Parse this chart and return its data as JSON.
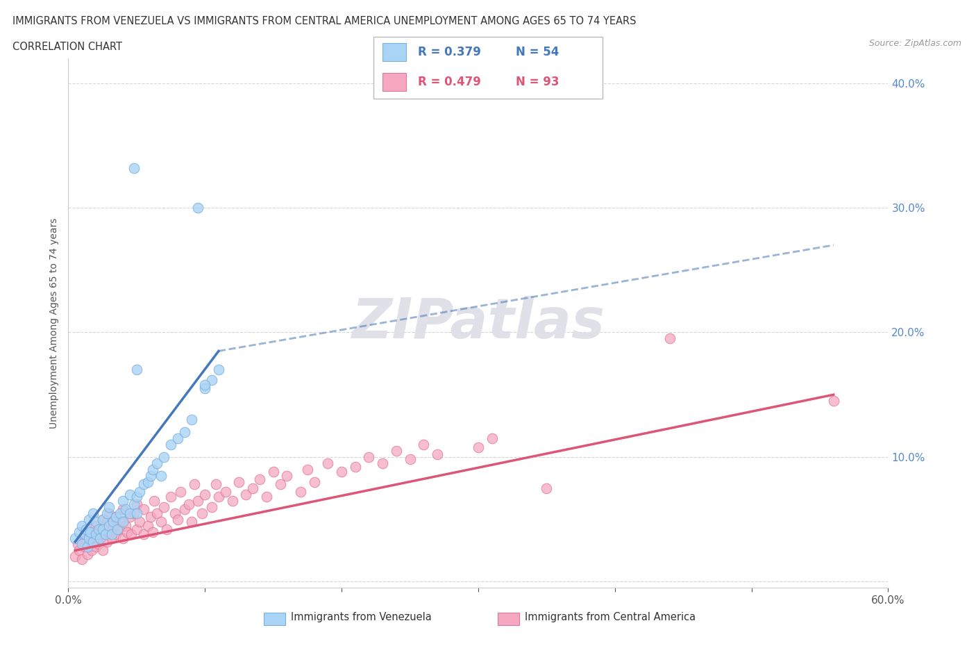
{
  "title_line1": "IMMIGRANTS FROM VENEZUELA VS IMMIGRANTS FROM CENTRAL AMERICA UNEMPLOYMENT AMONG AGES 65 TO 74 YEARS",
  "title_line2": "CORRELATION CHART",
  "source_text": "Source: ZipAtlas.com",
  "ylabel": "Unemployment Among Ages 65 to 74 years",
  "xlim": [
    0.0,
    0.6
  ],
  "ylim": [
    -0.005,
    0.42
  ],
  "xticks": [
    0.0,
    0.1,
    0.2,
    0.3,
    0.4,
    0.5,
    0.6
  ],
  "xticklabels": [
    "0.0%",
    "",
    "",
    "",
    "",
    "",
    "60.0%"
  ],
  "yticks": [
    0.0,
    0.1,
    0.2,
    0.3,
    0.4
  ],
  "yticklabels": [
    "",
    "10.0%",
    "20.0%",
    "30.0%",
    "40.0%"
  ],
  "venezuela_color": "#aad4f5",
  "venezuela_edge": "#7ab0e0",
  "central_america_color": "#f5a8c0",
  "central_america_edge": "#e07898",
  "trend_venezuela_color": "#4477bb",
  "trend_central_america_color": "#dd5577",
  "watermark_color": "#e8e8ee",
  "legend_R_venezuela": "R = 0.379",
  "legend_N_venezuela": "N = 54",
  "legend_R_central": "R = 0.479",
  "legend_N_central": "N = 93",
  "venezuela_x": [
    0.005,
    0.008,
    0.01,
    0.01,
    0.012,
    0.013,
    0.014,
    0.015,
    0.015,
    0.016,
    0.018,
    0.018,
    0.02,
    0.02,
    0.022,
    0.023,
    0.025,
    0.025,
    0.027,
    0.028,
    0.03,
    0.03,
    0.032,
    0.033,
    0.035,
    0.036,
    0.038,
    0.04,
    0.04,
    0.042,
    0.045,
    0.045,
    0.048,
    0.05,
    0.05,
    0.052,
    0.055,
    0.058,
    0.06,
    0.062,
    0.065,
    0.068,
    0.07,
    0.075,
    0.08,
    0.085,
    0.09,
    0.1,
    0.105,
    0.11,
    0.048,
    0.095,
    0.05,
    0.1
  ],
  "venezuela_y": [
    0.035,
    0.04,
    0.03,
    0.045,
    0.038,
    0.042,
    0.028,
    0.05,
    0.035,
    0.04,
    0.032,
    0.055,
    0.038,
    0.048,
    0.042,
    0.035,
    0.05,
    0.042,
    0.038,
    0.055,
    0.045,
    0.06,
    0.038,
    0.048,
    0.052,
    0.042,
    0.055,
    0.065,
    0.048,
    0.058,
    0.07,
    0.055,
    0.062,
    0.068,
    0.055,
    0.072,
    0.078,
    0.08,
    0.085,
    0.09,
    0.095,
    0.085,
    0.1,
    0.11,
    0.115,
    0.12,
    0.13,
    0.155,
    0.162,
    0.17,
    0.332,
    0.3,
    0.17,
    0.158
  ],
  "central_america_x": [
    0.005,
    0.007,
    0.008,
    0.01,
    0.01,
    0.012,
    0.013,
    0.014,
    0.015,
    0.016,
    0.017,
    0.018,
    0.018,
    0.02,
    0.02,
    0.021,
    0.022,
    0.023,
    0.024,
    0.025,
    0.025,
    0.026,
    0.028,
    0.028,
    0.03,
    0.03,
    0.032,
    0.033,
    0.035,
    0.035,
    0.037,
    0.038,
    0.04,
    0.04,
    0.042,
    0.043,
    0.045,
    0.046,
    0.048,
    0.05,
    0.05,
    0.052,
    0.055,
    0.055,
    0.058,
    0.06,
    0.062,
    0.063,
    0.065,
    0.068,
    0.07,
    0.072,
    0.075,
    0.078,
    0.08,
    0.082,
    0.085,
    0.088,
    0.09,
    0.092,
    0.095,
    0.098,
    0.1,
    0.105,
    0.108,
    0.11,
    0.115,
    0.12,
    0.125,
    0.13,
    0.135,
    0.14,
    0.145,
    0.15,
    0.155,
    0.16,
    0.17,
    0.175,
    0.18,
    0.19,
    0.2,
    0.21,
    0.22,
    0.23,
    0.24,
    0.25,
    0.26,
    0.27,
    0.3,
    0.31,
    0.35,
    0.44,
    0.56
  ],
  "central_america_y": [
    0.02,
    0.03,
    0.025,
    0.018,
    0.035,
    0.028,
    0.033,
    0.022,
    0.038,
    0.03,
    0.025,
    0.04,
    0.032,
    0.028,
    0.045,
    0.035,
    0.03,
    0.042,
    0.038,
    0.025,
    0.05,
    0.038,
    0.032,
    0.048,
    0.04,
    0.055,
    0.035,
    0.045,
    0.038,
    0.052,
    0.042,
    0.048,
    0.035,
    0.058,
    0.045,
    0.04,
    0.052,
    0.038,
    0.055,
    0.042,
    0.062,
    0.048,
    0.038,
    0.058,
    0.045,
    0.052,
    0.04,
    0.065,
    0.055,
    0.048,
    0.06,
    0.042,
    0.068,
    0.055,
    0.05,
    0.072,
    0.058,
    0.062,
    0.048,
    0.078,
    0.065,
    0.055,
    0.07,
    0.06,
    0.078,
    0.068,
    0.072,
    0.065,
    0.08,
    0.07,
    0.075,
    0.082,
    0.068,
    0.088,
    0.078,
    0.085,
    0.072,
    0.09,
    0.08,
    0.095,
    0.088,
    0.092,
    0.1,
    0.095,
    0.105,
    0.098,
    0.11,
    0.102,
    0.108,
    0.115,
    0.075,
    0.195,
    0.145
  ],
  "trend_ven_x0": 0.005,
  "trend_ven_x1": 0.11,
  "trend_ven_y0": 0.032,
  "trend_ven_y1": 0.185,
  "trend_ca_x0": 0.005,
  "trend_ca_x1": 0.56,
  "trend_ca_y0": 0.025,
  "trend_ca_y1": 0.15
}
